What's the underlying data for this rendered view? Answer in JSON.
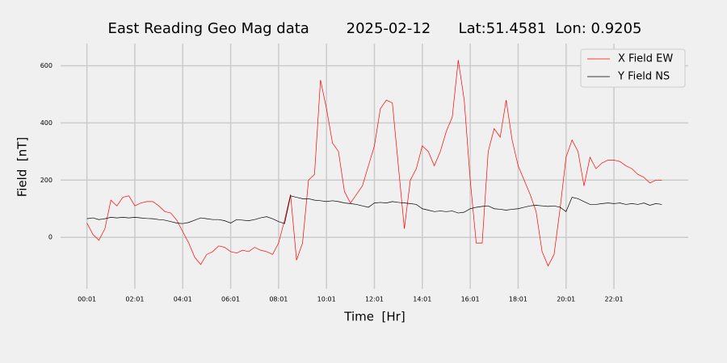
{
  "chart_data": {
    "type": "line",
    "title": "East Reading Geo Mag data        2025-02-12      Lat:51.4581  Lon: 0.9205",
    "xlabel": "Time  [Hr]",
    "ylabel": "Field  [nT]",
    "x": [
      0,
      0.25,
      0.5,
      0.75,
      1,
      1.25,
      1.5,
      1.75,
      2,
      2.25,
      2.5,
      2.75,
      3,
      3.25,
      3.5,
      3.75,
      4,
      4.25,
      4.5,
      4.75,
      5,
      5.25,
      5.5,
      5.75,
      6,
      6.25,
      6.5,
      6.75,
      7,
      7.25,
      7.5,
      7.75,
      8,
      8.25,
      8.5,
      8.75,
      9,
      9.25,
      9.5,
      9.75,
      10,
      10.25,
      10.5,
      10.75,
      11,
      11.25,
      11.5,
      11.75,
      12,
      12.25,
      12.5,
      12.75,
      13,
      13.25,
      13.5,
      13.75,
      14,
      14.25,
      14.5,
      14.75,
      15,
      15.25,
      15.5,
      15.75,
      16,
      16.25,
      16.5,
      16.75,
      17,
      17.25,
      17.5,
      17.75,
      18,
      18.25,
      18.5,
      18.75,
      19,
      19.25,
      19.5,
      19.75,
      20,
      20.25,
      20.5,
      20.75,
      21,
      21.25,
      21.5,
      21.75,
      22,
      22.25,
      22.5,
      22.75,
      23,
      23.25,
      23.5,
      23.75,
      24
    ],
    "series": [
      {
        "name": "X Field EW",
        "color": "#ff0000",
        "values": [
          50,
          10,
          -10,
          30,
          130,
          110,
          140,
          145,
          110,
          120,
          125,
          125,
          110,
          90,
          85,
          60,
          20,
          -20,
          -70,
          -95,
          -60,
          -50,
          -30,
          -35,
          -50,
          -55,
          -45,
          -50,
          -35,
          -45,
          -50,
          -60,
          -20,
          60,
          150,
          -80,
          -20,
          200,
          220,
          550,
          450,
          330,
          300,
          160,
          120,
          150,
          180,
          250,
          320,
          450,
          480,
          470,
          250,
          30,
          200,
          240,
          320,
          300,
          250,
          300,
          370,
          420,
          620,
          480,
          200,
          -20,
          -20,
          300,
          380,
          350,
          480,
          340,
          250,
          200,
          150,
          90,
          -50,
          -100,
          -60,
          100,
          280,
          340,
          300,
          180,
          280,
          240,
          260,
          270,
          270,
          265,
          250,
          240,
          220,
          210,
          190,
          200,
          200
        ]
      },
      {
        "name": "Y Field NS",
        "color": "#000000",
        "values": [
          65,
          68,
          62,
          65,
          70,
          68,
          70,
          68,
          70,
          68,
          66,
          65,
          62,
          60,
          55,
          50,
          48,
          52,
          60,
          68,
          65,
          62,
          62,
          58,
          50,
          62,
          60,
          58,
          62,
          68,
          72,
          65,
          55,
          48,
          145,
          140,
          135,
          135,
          130,
          128,
          125,
          128,
          125,
          120,
          118,
          115,
          110,
          105,
          120,
          122,
          120,
          125,
          122,
          120,
          118,
          115,
          100,
          95,
          90,
          92,
          90,
          92,
          85,
          88,
          100,
          105,
          108,
          110,
          100,
          98,
          95,
          98,
          100,
          105,
          110,
          112,
          110,
          108,
          110,
          105,
          90,
          140,
          135,
          125,
          115,
          115,
          118,
          120,
          118,
          120,
          115,
          118,
          115,
          120,
          112,
          118,
          115
        ]
      }
    ],
    "xlim": [
      -1.1,
      25.1
    ],
    "ylim": [
      -180,
      655
    ],
    "xticks": [
      {
        "value": 0,
        "label": "00:01"
      },
      {
        "value": 2,
        "label": "02:01"
      },
      {
        "value": 4,
        "label": "04:01"
      },
      {
        "value": 6,
        "label": "06:01"
      },
      {
        "value": 8,
        "label": "08:01"
      },
      {
        "value": 10,
        "label": "10:01"
      },
      {
        "value": 12,
        "label": "12:01"
      },
      {
        "value": 14,
        "label": "14:01"
      },
      {
        "value": 16,
        "label": "16:01"
      },
      {
        "value": 18,
        "label": "18:01"
      },
      {
        "value": 20,
        "label": "20:01"
      },
      {
        "value": 22,
        "label": "22:01"
      }
    ],
    "yticks": [
      0,
      200,
      400,
      600
    ],
    "grid": true,
    "legend": "upper right"
  }
}
